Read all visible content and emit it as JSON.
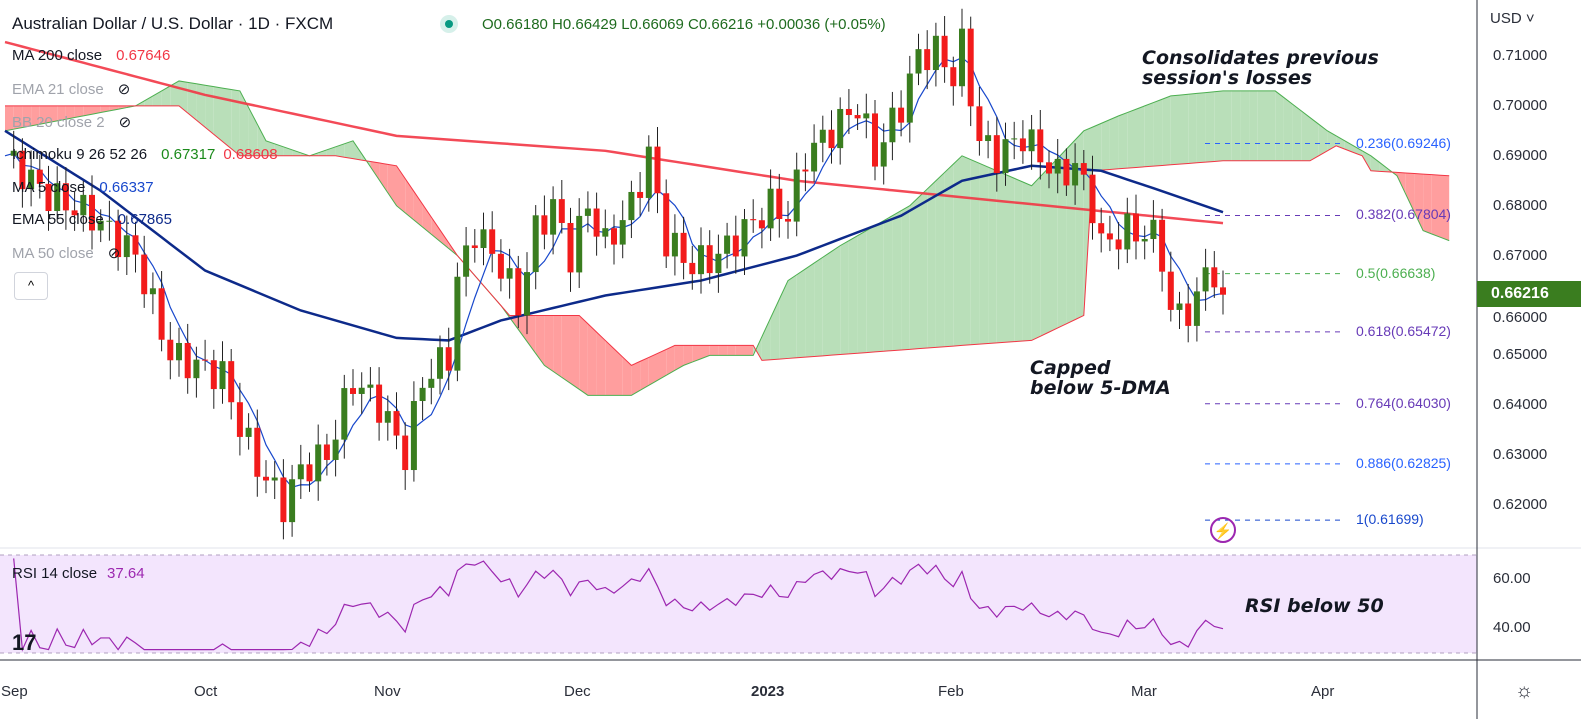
{
  "header": {
    "title": "Australian Dollar / U.S. Dollar · 1D · FXCM",
    "ohlc": "O0.66180 H0.66429 L0.66069 C0.66216 +0.00036 (+0.05%)"
  },
  "legend": [
    {
      "label": "MA 200 close",
      "value": "0.67646",
      "color": "#f23645"
    },
    {
      "label": "EMA 21 close",
      "hidden": true
    },
    {
      "label": "BB 20 close 2",
      "hidden": true
    },
    {
      "label": "Ichimoku 9 26 52 26",
      "value": "0.67317",
      "value2": "0.68608"
    },
    {
      "label": "MA 5 close",
      "value": "0.66337",
      "color": "#1848cc"
    },
    {
      "label": "EMA 55 close",
      "value": "0.67865",
      "color": "#0d2a8a"
    },
    {
      "label": "MA 50 close",
      "hidden": true
    }
  ],
  "annotations": {
    "top": "Consolidates previous\nsession's losses",
    "mid": "Capped\nbelow 5-DMA",
    "rsi": "RSI below 50"
  },
  "axis": {
    "currency": "USD",
    "current_price": "0.66216",
    "price_ticks": [
      "0.71000",
      "0.70000",
      "0.69000",
      "0.68000",
      "0.67000",
      "0.66000",
      "0.65000",
      "0.64000",
      "0.63000",
      "0.62000"
    ],
    "rsi_ticks": [
      "60.00",
      "40.00"
    ],
    "time_ticks": [
      "Sep",
      "Oct",
      "Nov",
      "Dec",
      "2023",
      "Feb",
      "Mar",
      "Apr"
    ]
  },
  "rsi": {
    "label": "RSI 14 close",
    "value": "37.64"
  },
  "chart_data": {
    "type": "candlestick",
    "title": "Australian Dollar / U.S. Dollar · 1D · FXCM",
    "ylim": [
      0.612,
      0.716
    ],
    "close_keypoints": [
      [
        0,
        0.69
      ],
      [
        5,
        0.682
      ],
      [
        10,
        0.678
      ],
      [
        15,
        0.67
      ],
      [
        17,
        0.66
      ],
      [
        19,
        0.65
      ],
      [
        22,
        0.648
      ],
      [
        25,
        0.646
      ],
      [
        27,
        0.636
      ],
      [
        29,
        0.628
      ],
      [
        32,
        0.62
      ],
      [
        34,
        0.627
      ],
      [
        37,
        0.63
      ],
      [
        40,
        0.645
      ],
      [
        43,
        0.64
      ],
      [
        46,
        0.63
      ],
      [
        48,
        0.645
      ],
      [
        51,
        0.65
      ],
      [
        52,
        0.665
      ],
      [
        54,
        0.675
      ],
      [
        57,
        0.668
      ],
      [
        59,
        0.66
      ],
      [
        61,
        0.675
      ],
      [
        63,
        0.68
      ],
      [
        65,
        0.67
      ],
      [
        67,
        0.68
      ],
      [
        69,
        0.672
      ],
      [
        72,
        0.68
      ],
      [
        74,
        0.69
      ],
      [
        76,
        0.673
      ],
      [
        79,
        0.668
      ],
      [
        82,
        0.67
      ],
      [
        85,
        0.675
      ],
      [
        88,
        0.68
      ],
      [
        90,
        0.678
      ],
      [
        92,
        0.69
      ],
      [
        95,
        0.695
      ],
      [
        98,
        0.7
      ],
      [
        100,
        0.69
      ],
      [
        103,
        0.7
      ],
      [
        105,
        0.71
      ],
      [
        107,
        0.711
      ],
      [
        109,
        0.706
      ],
      [
        110,
        0.712
      ],
      [
        112,
        0.693
      ],
      [
        114,
        0.69
      ],
      [
        117,
        0.694
      ],
      [
        119,
        0.69
      ],
      [
        121,
        0.686
      ],
      [
        123,
        0.688
      ],
      [
        125,
        0.68
      ],
      [
        126,
        0.672
      ],
      [
        129,
        0.675
      ],
      [
        132,
        0.674
      ],
      [
        133,
        0.67
      ],
      [
        134,
        0.658
      ],
      [
        137,
        0.66
      ],
      [
        138,
        0.668
      ],
      [
        139,
        0.666
      ],
      [
        140,
        0.66216
      ]
    ],
    "ma200": [
      [
        0,
        0.7128
      ],
      [
        23,
        0.7022
      ],
      [
        45,
        0.694
      ],
      [
        69,
        0.691
      ],
      [
        91,
        0.685
      ],
      [
        114,
        0.681
      ],
      [
        140,
        0.6765
      ]
    ],
    "ema55": [
      [
        0,
        0.695
      ],
      [
        11,
        0.683
      ],
      [
        23,
        0.667
      ],
      [
        34,
        0.659
      ],
      [
        45,
        0.6535
      ],
      [
        51,
        0.653
      ],
      [
        57,
        0.657
      ],
      [
        69,
        0.662
      ],
      [
        80,
        0.665
      ],
      [
        91,
        0.67
      ],
      [
        103,
        0.678
      ],
      [
        110,
        0.685
      ],
      [
        118,
        0.688
      ],
      [
        126,
        0.687
      ],
      [
        132,
        0.6835
      ],
      [
        140,
        0.6787
      ]
    ],
    "ichimoku_span_a": [
      [
        0,
        0.695
      ],
      [
        15,
        0.7
      ],
      [
        20,
        0.705
      ],
      [
        27,
        0.703
      ],
      [
        30,
        0.693
      ],
      [
        35,
        0.69
      ],
      [
        40,
        0.693
      ],
      [
        45,
        0.68
      ],
      [
        52,
        0.67
      ],
      [
        57,
        0.66
      ],
      [
        62,
        0.648
      ],
      [
        67,
        0.642
      ],
      [
        72,
        0.642
      ],
      [
        78,
        0.648
      ],
      [
        81,
        0.65
      ],
      [
        86,
        0.65
      ],
      [
        90,
        0.665
      ],
      [
        96,
        0.672
      ],
      [
        104,
        0.68
      ],
      [
        110,
        0.69
      ],
      [
        118,
        0.684
      ],
      [
        124,
        0.695
      ],
      [
        128,
        0.698
      ],
      [
        134,
        0.702
      ],
      [
        140,
        0.703
      ],
      [
        146,
        0.703
      ],
      [
        152,
        0.695
      ],
      [
        157,
        0.69
      ],
      [
        160,
        0.686
      ],
      [
        163,
        0.675
      ],
      [
        166,
        0.673
      ]
    ],
    "ichimoku_span_b": [
      [
        0,
        0.7
      ],
      [
        20,
        0.7
      ],
      [
        27,
        0.69
      ],
      [
        38,
        0.69
      ],
      [
        45,
        0.688
      ],
      [
        52,
        0.67
      ],
      [
        58,
        0.658
      ],
      [
        66,
        0.658
      ],
      [
        72,
        0.648
      ],
      [
        77,
        0.652
      ],
      [
        86,
        0.652
      ],
      [
        87,
        0.649
      ],
      [
        110,
        0.652
      ],
      [
        118,
        0.653
      ],
      [
        124,
        0.658
      ],
      [
        125,
        0.687
      ],
      [
        140,
        0.689
      ],
      [
        150,
        0.689
      ],
      [
        153,
        0.692
      ],
      [
        156,
        0.69
      ],
      [
        157,
        0.687
      ],
      [
        166,
        0.686
      ]
    ],
    "fibonacci": [
      {
        "label": "0.236(0.69246)",
        "price": 0.69246,
        "color": "#2962ff"
      },
      {
        "label": "0.382(0.67804)",
        "price": 0.67804,
        "color": "#673ab7"
      },
      {
        "label": "0.5(0.66638)",
        "price": 0.66638,
        "color": "#4caf50"
      },
      {
        "label": "0.618(0.65472)",
        "price": 0.65472,
        "color": "#673ab7"
      },
      {
        "label": "0.764(0.64030)",
        "price": 0.6403,
        "color": "#673ab7"
      },
      {
        "label": "0.886(0.62825)",
        "price": 0.62825,
        "color": "#2962ff"
      },
      {
        "label": "1(0.61699)",
        "price": 0.61699,
        "color": "#1848cc"
      }
    ],
    "rsi_range": [
      30,
      70
    ]
  }
}
